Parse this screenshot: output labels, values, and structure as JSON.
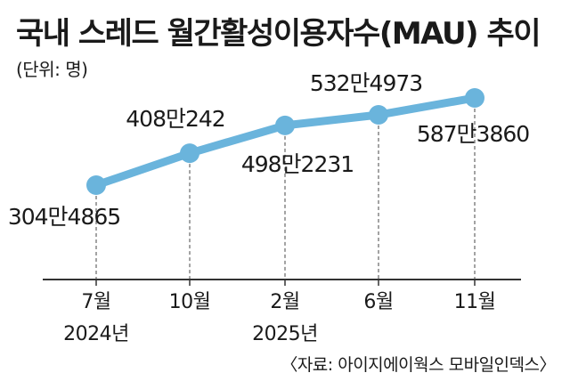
{
  "title": "국내 스레드 월간활성이용자수(MAU) 추이",
  "unit": "(단위: 명)",
  "source": "〈자료: 아이지에이웍스 모바일인덱스〉",
  "colors": {
    "line": "#6ab4dc",
    "marker": "#6ab4dc",
    "axis": "#333333",
    "dash": "#666666"
  },
  "chart_data": {
    "type": "line",
    "categories": [
      "7월",
      "10월",
      "2월",
      "6월",
      "11월"
    ],
    "year_labels": [
      {
        "index": 0,
        "text": "2024년"
      },
      {
        "index": 2,
        "text": "2025년"
      }
    ],
    "values": [
      3044865,
      4080242,
      4982231,
      5324973,
      5873860
    ],
    "data_labels": [
      "304만4865",
      "408만242",
      "498만2231",
      "532만4973",
      "587만3860"
    ],
    "grid": false,
    "legend": "none"
  }
}
